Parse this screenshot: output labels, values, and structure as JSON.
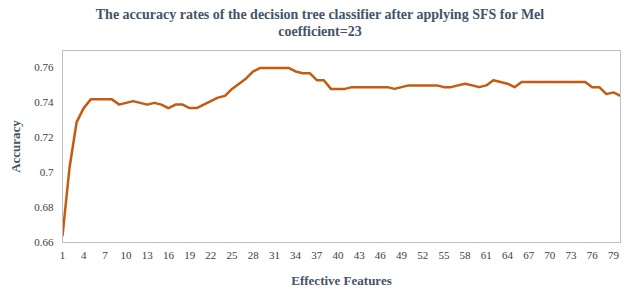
{
  "chart_data": {
    "type": "line",
    "title": "The accuracy rates of the decision tree classifier after applying SFS for Mel coefficient=23",
    "x_label": "Effective Features",
    "y_label": "Accuracy",
    "x": [
      1,
      2,
      3,
      4,
      5,
      6,
      7,
      8,
      9,
      10,
      11,
      12,
      13,
      14,
      15,
      16,
      17,
      18,
      19,
      20,
      21,
      22,
      23,
      24,
      25,
      26,
      27,
      28,
      29,
      30,
      31,
      32,
      33,
      34,
      35,
      36,
      37,
      38,
      39,
      40,
      41,
      42,
      43,
      44,
      45,
      46,
      47,
      48,
      49,
      50,
      51,
      52,
      53,
      54,
      55,
      56,
      57,
      58,
      59,
      60,
      61,
      62,
      63,
      64,
      65,
      66,
      67,
      68,
      69,
      70,
      71,
      72,
      73,
      74,
      75,
      76,
      77,
      78,
      79,
      80
    ],
    "values": [
      0.664,
      0.703,
      0.729,
      0.737,
      0.742,
      0.742,
      0.742,
      0.742,
      0.739,
      0.74,
      0.741,
      0.74,
      0.739,
      0.74,
      0.739,
      0.737,
      0.739,
      0.739,
      0.737,
      0.737,
      0.739,
      0.741,
      0.743,
      0.744,
      0.748,
      0.751,
      0.754,
      0.758,
      0.76,
      0.76,
      0.76,
      0.76,
      0.76,
      0.758,
      0.757,
      0.757,
      0.753,
      0.753,
      0.748,
      0.748,
      0.748,
      0.749,
      0.749,
      0.749,
      0.749,
      0.749,
      0.749,
      0.748,
      0.749,
      0.75,
      0.75,
      0.75,
      0.75,
      0.75,
      0.749,
      0.749,
      0.75,
      0.751,
      0.75,
      0.749,
      0.75,
      0.753,
      0.752,
      0.751,
      0.749,
      0.752,
      0.752,
      0.752,
      0.752,
      0.752,
      0.752,
      0.752,
      0.752,
      0.752,
      0.752,
      0.749,
      0.749,
      0.745,
      0.746,
      0.744
    ],
    "color": "#c55a11",
    "xlim": [
      1,
      80
    ],
    "xticks": [
      1,
      4,
      7,
      10,
      13,
      16,
      19,
      22,
      25,
      28,
      31,
      34,
      37,
      40,
      43,
      46,
      49,
      52,
      55,
      58,
      61,
      64,
      67,
      70,
      73,
      76,
      79
    ],
    "ylim": [
      0.66,
      0.77
    ],
    "yticks": [
      0.66,
      0.68,
      0.7,
      0.72,
      0.74,
      0.76
    ],
    "grid": false
  }
}
